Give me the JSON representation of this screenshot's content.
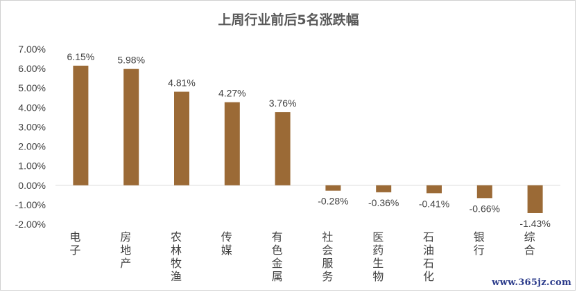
{
  "chart_data": {
    "type": "bar",
    "title": "上周行业前后5名涨跌幅",
    "categories": [
      "电子",
      "房地产",
      "农林牧渔",
      "传媒",
      "有色金属",
      "社会服务",
      "医药生物",
      "石油石化",
      "银行",
      "综合"
    ],
    "values": [
      6.15,
      5.98,
      4.81,
      4.27,
      3.76,
      -0.28,
      -0.36,
      -0.41,
      -0.66,
      -1.43
    ],
    "data_labels": [
      "6.15%",
      "5.98%",
      "4.81%",
      "4.27%",
      "3.76%",
      "-0.28%",
      "-0.36%",
      "-0.41%",
      "-0.66%",
      "-1.43%"
    ],
    "ylim": [
      -2,
      7
    ],
    "yticks": [
      7,
      6,
      5,
      4,
      3,
      2,
      1,
      0,
      -1,
      -2
    ],
    "ytick_labels": [
      "7.00%",
      "6.00%",
      "5.00%",
      "4.00%",
      "3.00%",
      "2.00%",
      "1.00%",
      "0.00%",
      "-1.00%",
      "-2.00%"
    ],
    "bar_color": "#9b6a36",
    "grid": false,
    "legend": "none"
  },
  "watermark": "www.365jz.com"
}
